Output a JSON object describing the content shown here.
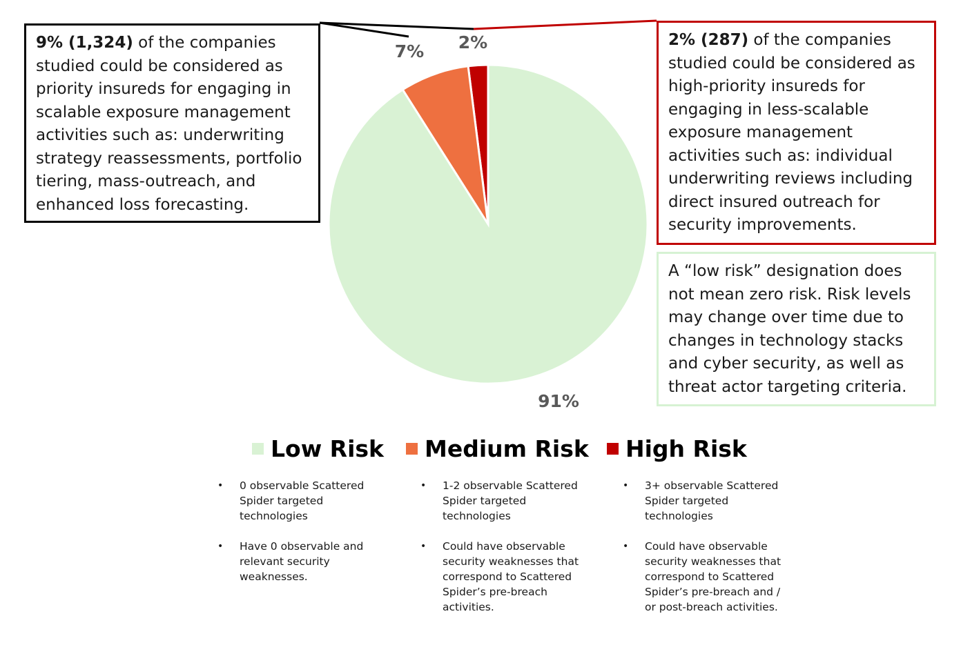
{
  "chart_data": {
    "type": "pie",
    "categories": [
      "Low Risk",
      "Medium Risk",
      "High Risk"
    ],
    "values": [
      91,
      7,
      2
    ],
    "data_labels": [
      "91%",
      "7%",
      "2%"
    ],
    "colors": [
      "#d9f2d4",
      "#ee7040",
      "#c00000"
    ],
    "legend_placement": "bottom",
    "start_angle": "12 o'clock, counter-clockwise"
  },
  "callouts": {
    "medium": {
      "bold": "9% (1,324)",
      "text": " of the companies studied could be considered as priority insureds for engaging in scalable exposure management activities such as: underwriting strategy reassessments, portfolio tiering, mass-outreach, and enhanced loss forecasting."
    },
    "high": {
      "bold": "2% (287)",
      "text": " of the companies studied could be considered as high-priority insureds for engaging in less-scalable exposure management activities such as: individual underwriting reviews including direct insured outreach for security improvements."
    },
    "note": "A “low risk” designation does not mean zero risk. Risk levels may change over time due to changes in technology stacks and cyber security, as well as threat actor targeting criteria."
  },
  "legend": [
    {
      "label": "Low Risk",
      "color": "#d9f2d4"
    },
    {
      "label": "Medium Risk",
      "color": "#ee7040"
    },
    {
      "label": "High Risk",
      "color": "#c00000"
    }
  ],
  "descriptions": {
    "low": [
      "0 observable Scattered Spider targeted technologies",
      "Have 0 observable and relevant security weaknesses."
    ],
    "medium": [
      "1-2 observable Scattered Spider targeted technologies",
      "Could have observable security weaknesses that correspond to Scattered Spider’s pre-breach activities."
    ],
    "high": [
      "3+ observable Scattered Spider targeted technologies",
      "Could have observable security weaknesses that correspond to Scattered Spider’s pre-breach and / or post-breach activities."
    ]
  }
}
